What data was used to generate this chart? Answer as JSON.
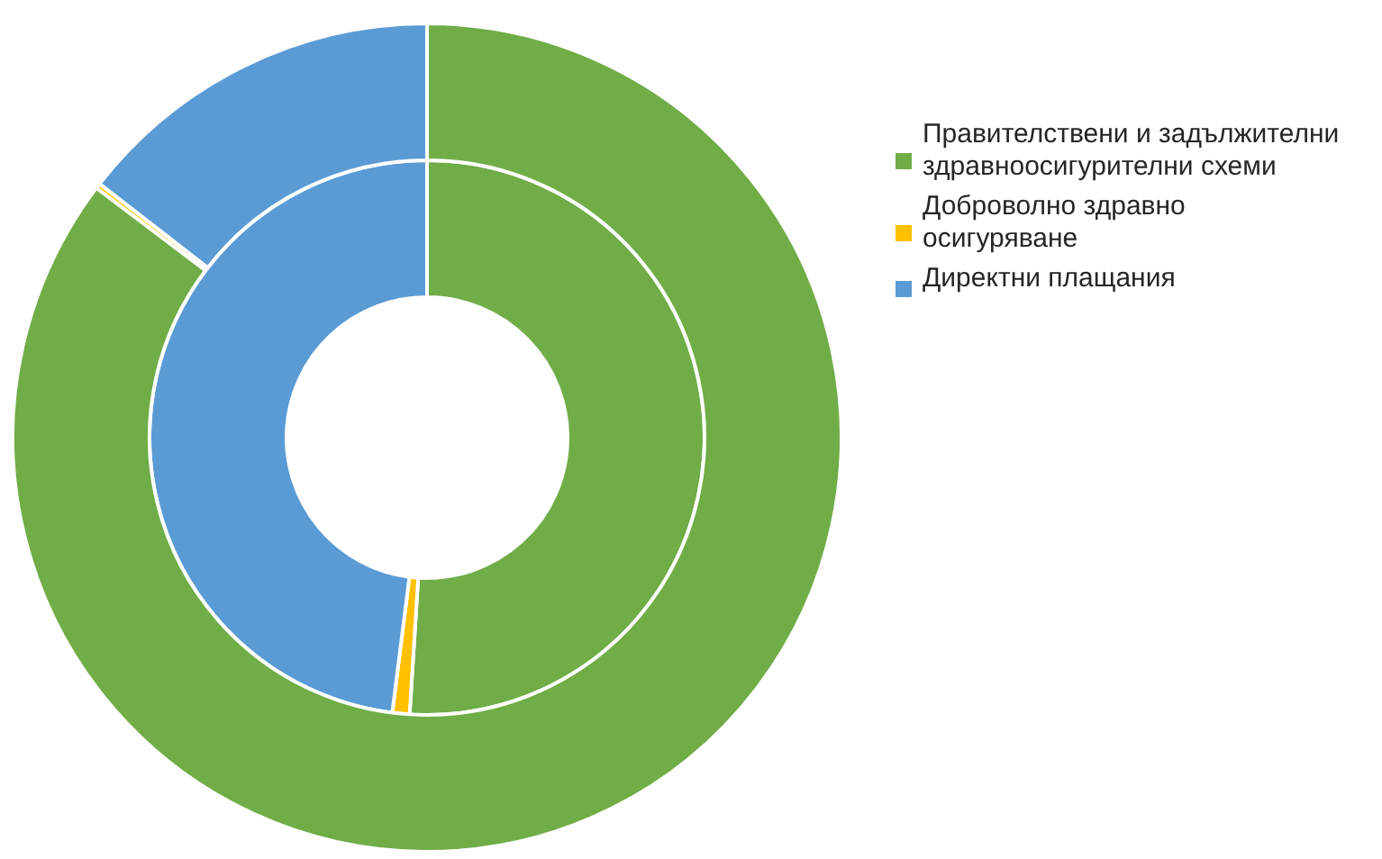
{
  "chart_data": {
    "type": "donut",
    "categories": [
      "Правителствени и задължителни здравноосигурителни схеми",
      "Доброволно здравно осигуряване",
      "Директни плащания"
    ],
    "colors": [
      "#70ad47",
      "#ffc000",
      "#5b9bd5"
    ],
    "series": [
      {
        "values": [
          51.0,
          1.0,
          48.0
        ]
      },
      {
        "values": [
          85.3,
          0.2,
          14.5
        ]
      }
    ],
    "legend": "right"
  }
}
